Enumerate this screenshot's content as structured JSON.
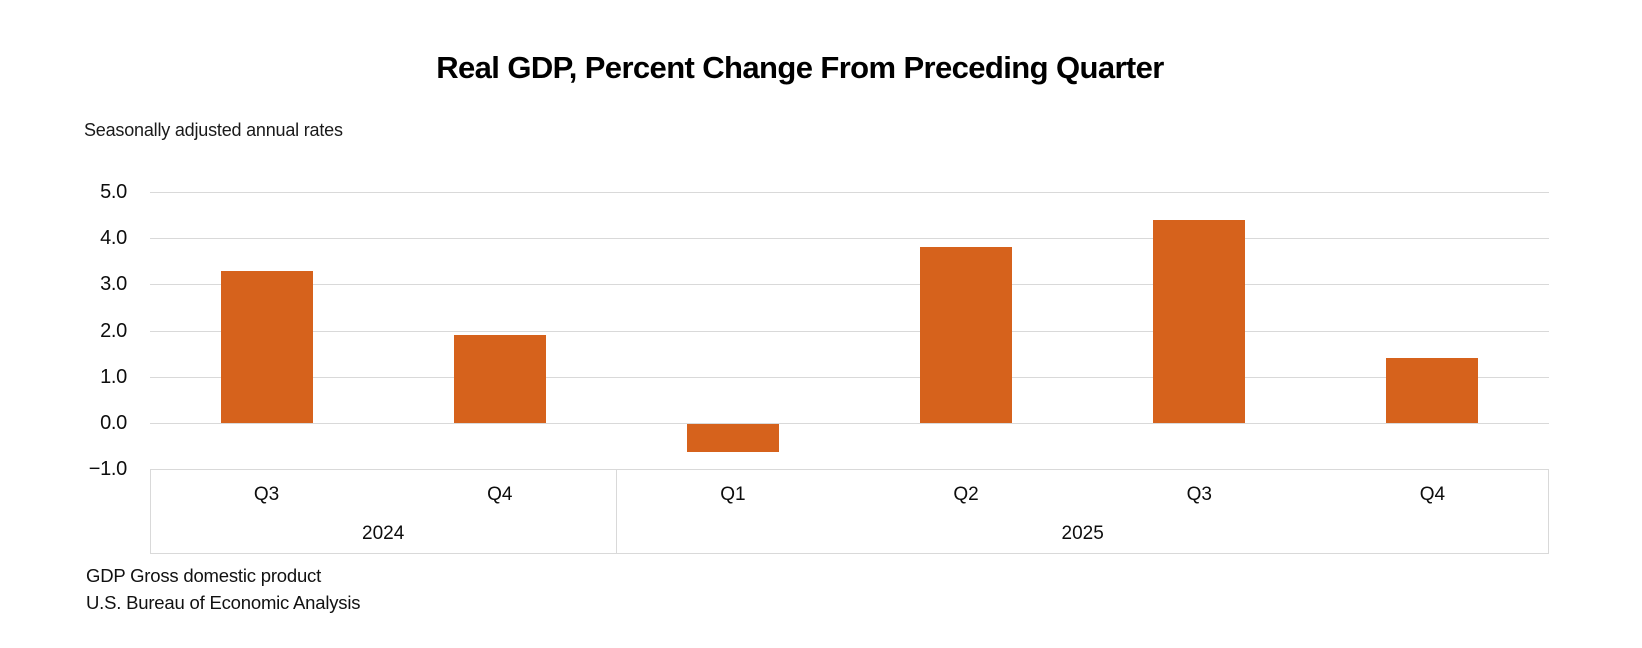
{
  "chart_data": {
    "type": "bar",
    "title": "Real GDP, Percent Change From Preceding Quarter",
    "subtitle": "Seasonally adjusted annual rates",
    "categories": [
      "Q3 2024",
      "Q4 2024",
      "Q1 2025",
      "Q2 2025",
      "Q3 2025",
      "Q4 2025"
    ],
    "values": [
      3.3,
      1.9,
      -0.6,
      3.8,
      4.4,
      1.4
    ],
    "points": [
      {
        "quarter": "Q3",
        "year": "2024",
        "value": 3.3
      },
      {
        "quarter": "Q4",
        "year": "2024",
        "value": 1.9
      },
      {
        "quarter": "Q1",
        "year": "2025",
        "value": -0.6
      },
      {
        "quarter": "Q2",
        "year": "2025",
        "value": 3.8
      },
      {
        "quarter": "Q3",
        "year": "2025",
        "value": 4.4
      },
      {
        "quarter": "Q4",
        "year": "2025",
        "value": 1.4
      }
    ],
    "year_groups": [
      {
        "year": "2024",
        "count": 2
      },
      {
        "year": "2025",
        "count": 4
      }
    ],
    "xlabel": "",
    "ylabel": "",
    "ylim": [
      -1.0,
      5.0
    ],
    "ytick_values": [
      5,
      4,
      3,
      2,
      1,
      0,
      -1
    ],
    "ytick_labels": [
      "5.0",
      "4.0",
      "3.0",
      "2.0",
      "1.0",
      "0.0",
      "−1.0"
    ],
    "grid": true,
    "legend_position": "none",
    "bar_color": "#D6621C",
    "gridline_color": "#D9D9D9",
    "footnotes": [
      "GDP Gross domestic product",
      "U.S. Bureau of Economic Analysis"
    ]
  }
}
